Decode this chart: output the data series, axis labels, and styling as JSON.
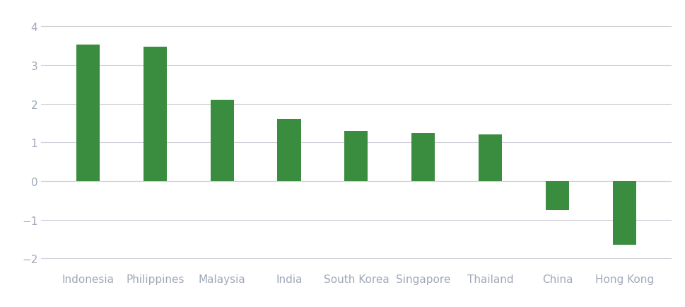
{
  "categories": [
    "Indonesia",
    "Philippines",
    "Malaysia",
    "India",
    "South Korea",
    "Singapore",
    "Thailand",
    "China",
    "Hong Kong"
  ],
  "values": [
    3.52,
    3.47,
    2.1,
    1.6,
    1.3,
    1.25,
    1.2,
    -0.75,
    -1.65
  ],
  "bar_color": "#3a8c3f",
  "ylim": [
    -2.3,
    4.3
  ],
  "yticks": [
    -2,
    -1,
    0,
    1,
    2,
    3,
    4
  ],
  "background_color": "#ffffff",
  "grid_color": "#d0d0d8",
  "tick_label_color": "#a0a8b8",
  "bar_width": 0.35,
  "tick_fontsize": 11
}
